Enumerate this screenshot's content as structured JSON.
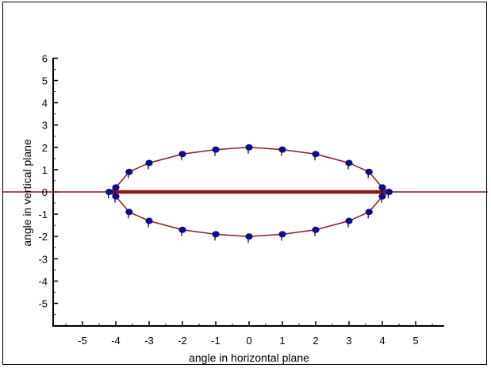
{
  "chart_data": {
    "type": "scatter",
    "title": "",
    "xlabel": "angle in horizontal plane",
    "ylabel": "angle in vertical plane",
    "xlim": [
      -6.3,
      6.3
    ],
    "ylim": [
      -6.3,
      6.3
    ],
    "x_ticks": [
      -5,
      -4,
      -3,
      -2,
      -1,
      0,
      1,
      2,
      3,
      4,
      5
    ],
    "y_ticks": [
      -5,
      -4,
      -3,
      -2,
      -1,
      0,
      1,
      2,
      3,
      4,
      5,
      6
    ],
    "grid": false,
    "legend": "none",
    "colors": {
      "points": "#0d0d8a",
      "curve": "#8b1a1a",
      "axis": "#000000"
    },
    "series": [
      {
        "type": "line",
        "x": [
          -4.2,
          -4.0,
          -3.6,
          -3.0,
          -2.0,
          -1.0,
          0.0,
          1.0,
          2.0,
          3.0,
          3.6,
          4.0,
          4.2,
          4.0,
          3.6,
          3.0,
          2.0,
          1.0,
          0.0,
          -1.0,
          -2.0,
          -3.0,
          -3.6,
          -4.0,
          -4.2
        ],
        "y": [
          0.0,
          0.2,
          0.9,
          1.3,
          1.7,
          1.9,
          2.0,
          1.9,
          1.7,
          1.3,
          0.9,
          0.2,
          0.0,
          -0.2,
          -0.9,
          -1.3,
          -1.7,
          -1.9,
          -2.0,
          -1.9,
          -1.7,
          -1.3,
          -0.9,
          -0.2,
          0.0
        ]
      },
      {
        "type": "line",
        "x": [
          -4.2,
          4.2
        ],
        "y": [
          0.0,
          0.0
        ]
      },
      {
        "type": "scatter",
        "x": [
          -4.2,
          -4.0,
          -3.6,
          -3.0,
          -2.0,
          -1.0,
          0.0,
          1.0,
          2.0,
          3.0,
          3.6,
          4.0,
          4.2,
          4.0,
          3.6,
          3.0,
          2.0,
          1.0,
          0.0,
          -1.0,
          -2.0,
          -3.0,
          -3.6,
          -4.0
        ],
        "y": [
          0.0,
          0.2,
          0.9,
          1.3,
          1.7,
          1.9,
          2.0,
          1.9,
          1.7,
          1.3,
          0.9,
          0.2,
          0.0,
          -0.2,
          -0.9,
          -1.3,
          -1.7,
          -1.9,
          -2.0,
          -1.9,
          -1.7,
          -1.3,
          -0.9,
          -0.2
        ]
      }
    ]
  }
}
